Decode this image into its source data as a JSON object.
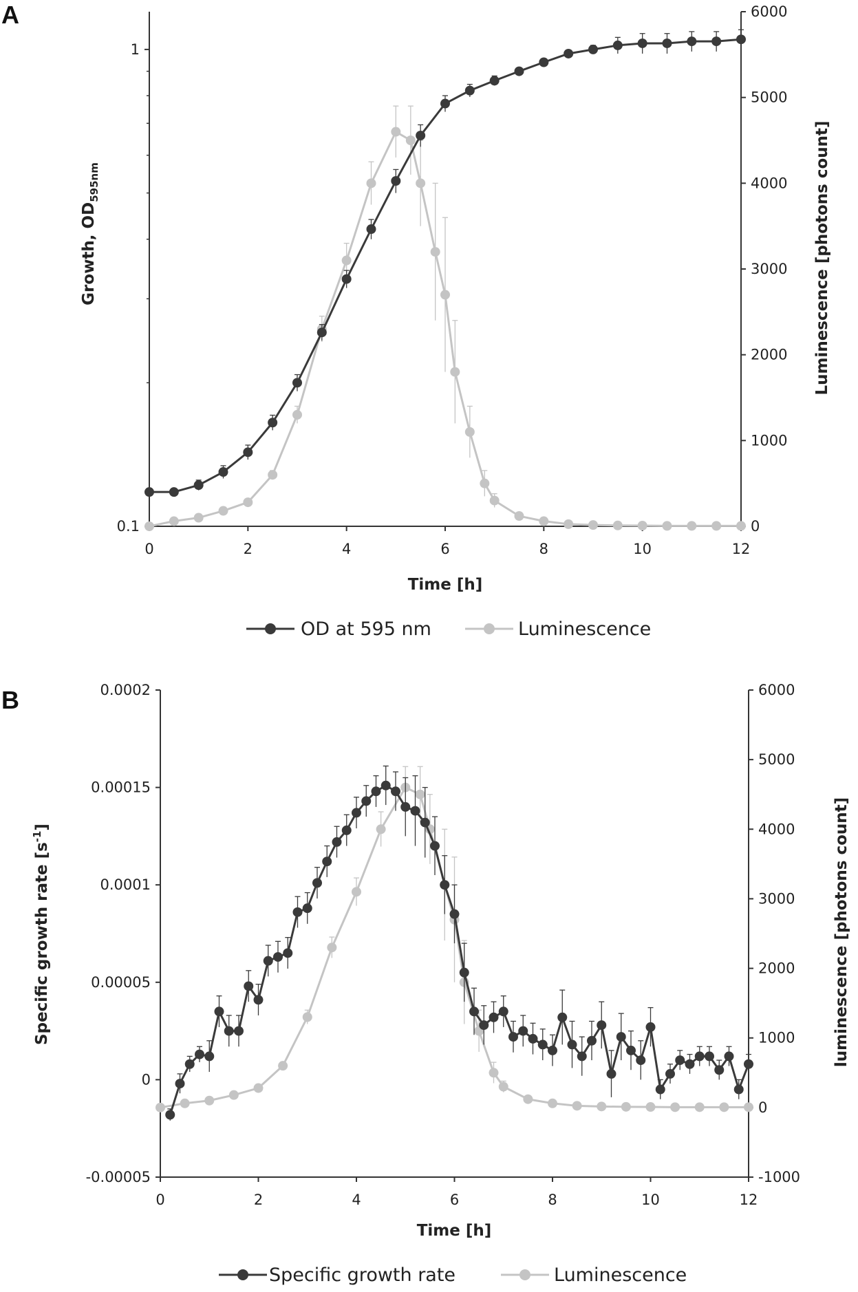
{
  "colors": {
    "od": "#3a3a3a",
    "growth_rate": "#3a3a3a",
    "luminescence": "#c4c4c4",
    "axis": "#333333"
  },
  "chart_data": [
    {
      "panel": "A",
      "type": "line",
      "xlabel": "Time  [h]",
      "xlim": [
        0,
        12
      ],
      "x_ticks": [
        "0",
        "2",
        "4",
        "6",
        "8",
        "10",
        "12"
      ],
      "ylabel": "Growth, OD",
      "ylabel_subscript": "595nm",
      "y_scale": "log",
      "ylim": [
        0.1,
        1.2
      ],
      "y_ticks": [
        "0.1",
        "1"
      ],
      "y2label": "Luminescence [photons count]",
      "y2lim": [
        0,
        6000
      ],
      "y2_ticks": [
        "0",
        "1000",
        "2000",
        "3000",
        "4000",
        "5000",
        "6000"
      ],
      "legend": {
        "position": "bottom",
        "entries": [
          "OD at 595 nm",
          "Luminescence"
        ]
      },
      "series": [
        {
          "name": "OD at 595 nm",
          "axis": "left",
          "x": [
            0,
            0.5,
            1,
            1.5,
            2,
            2.5,
            3,
            3.5,
            4,
            4.5,
            5,
            5.5,
            6,
            6.5,
            7,
            7.5,
            8,
            8.5,
            9,
            9.5,
            10,
            10.5,
            11,
            11.5,
            12
          ],
          "y": [
            0.118,
            0.118,
            0.122,
            0.13,
            0.143,
            0.165,
            0.2,
            0.255,
            0.33,
            0.42,
            0.53,
            0.66,
            0.77,
            0.82,
            0.86,
            0.9,
            0.94,
            0.98,
            1.0,
            1.02,
            1.03,
            1.03,
            1.04,
            1.04,
            1.05
          ],
          "err": [
            0.002,
            0.002,
            0.003,
            0.004,
            0.005,
            0.006,
            0.008,
            0.01,
            0.014,
            0.02,
            0.03,
            0.035,
            0.03,
            0.025,
            0.02,
            0.015,
            0.012,
            0.01,
            0.02,
            0.04,
            0.05,
            0.05,
            0.05,
            0.05,
            0.05
          ]
        },
        {
          "name": "Luminescence",
          "axis": "right",
          "x": [
            0,
            0.5,
            1,
            1.5,
            2,
            2.5,
            3,
            3.5,
            4,
            4.5,
            5,
            5.3,
            5.5,
            5.8,
            6,
            6.2,
            6.5,
            6.8,
            7,
            7.5,
            8,
            8.5,
            9,
            9.5,
            10,
            10.5,
            11,
            11.5,
            12
          ],
          "y": [
            0,
            60,
            100,
            180,
            280,
            600,
            1300,
            2300,
            3100,
            4000,
            4600,
            4500,
            4000,
            3200,
            2700,
            1800,
            1100,
            500,
            300,
            120,
            60,
            25,
            15,
            10,
            8,
            5,
            5,
            5,
            5
          ],
          "err": [
            5,
            10,
            15,
            20,
            30,
            50,
            100,
            150,
            200,
            250,
            300,
            400,
            500,
            800,
            900,
            600,
            300,
            150,
            80,
            40,
            20,
            10,
            5,
            5,
            5,
            5,
            5,
            5,
            5
          ]
        }
      ]
    },
    {
      "panel": "B",
      "type": "line",
      "xlabel": "Time [h]",
      "xlim": [
        0,
        12
      ],
      "x_ticks": [
        "0",
        "2",
        "4",
        "6",
        "8",
        "10",
        "12"
      ],
      "ylabel": "Specific growth rate [s",
      "ylabel_superscript": "-1",
      "ylabel_close": "]",
      "ylim": [
        -5e-05,
        0.0002
      ],
      "y_ticks": [
        "-0.00005",
        "0",
        "0.00005",
        "0.0001",
        "0.00015",
        "0.0002"
      ],
      "y2label": "luminescence [photons count]",
      "y2lim": [
        -1000,
        6000
      ],
      "y2_ticks": [
        "-1000",
        "0",
        "1000",
        "2000",
        "3000",
        "4000",
        "5000",
        "6000"
      ],
      "legend": {
        "position": "bottom",
        "entries": [
          "Specific growth rate",
          "Luminescence"
        ]
      },
      "series": [
        {
          "name": "Specific growth rate",
          "axis": "left",
          "x": [
            0.2,
            0.4,
            0.6,
            0.8,
            1.0,
            1.2,
            1.4,
            1.6,
            1.8,
            2.0,
            2.2,
            2.4,
            2.6,
            2.8,
            3.0,
            3.2,
            3.4,
            3.6,
            3.8,
            4.0,
            4.2,
            4.4,
            4.6,
            4.8,
            5.0,
            5.2,
            5.4,
            5.6,
            5.8,
            6.0,
            6.2,
            6.4,
            6.6,
            6.8,
            7.0,
            7.2,
            7.4,
            7.6,
            7.8,
            8.0,
            8.2,
            8.4,
            8.6,
            8.8,
            9.0,
            9.2,
            9.4,
            9.6,
            9.8,
            10.0,
            10.2,
            10.4,
            10.6,
            10.8,
            11.0,
            11.2,
            11.4,
            11.6,
            11.8,
            12.0
          ],
          "y": [
            -1.8e-05,
            -2e-06,
            8e-06,
            1.3e-05,
            1.2e-05,
            3.5e-05,
            2.5e-05,
            2.5e-05,
            4.8e-05,
            4.1e-05,
            6.1e-05,
            6.3e-05,
            6.5e-05,
            8.6e-05,
            8.8e-05,
            0.000101,
            0.000112,
            0.000122,
            0.000128,
            0.000137,
            0.000143,
            0.000148,
            0.000151,
            0.000148,
            0.00014,
            0.000138,
            0.000132,
            0.00012,
            0.0001,
            8.5e-05,
            5.5e-05,
            3.5e-05,
            2.8e-05,
            3.2e-05,
            3.5e-05,
            2.2e-05,
            2.5e-05,
            2.1e-05,
            1.8e-05,
            1.5e-05,
            3.2e-05,
            1.8e-05,
            1.2e-05,
            2e-05,
            2.8e-05,
            3e-06,
            2.2e-05,
            1.5e-05,
            1e-05,
            2.7e-05,
            -5e-06,
            3e-06,
            1e-05,
            8e-06,
            1.2e-05,
            1.2e-05,
            5e-06,
            1.2e-05,
            -5e-06,
            8e-06
          ],
          "err": [
            3e-06,
            5e-06,
            4e-06,
            4e-06,
            8e-06,
            8e-06,
            8e-06,
            8e-06,
            8e-06,
            8e-06,
            8e-06,
            8e-06,
            8e-06,
            8e-06,
            8e-06,
            8e-06,
            8e-06,
            8e-06,
            8e-06,
            8e-06,
            8e-06,
            8e-06,
            1e-05,
            1e-05,
            1.5e-05,
            1.8e-05,
            1.8e-05,
            1.5e-05,
            1.5e-05,
            1.5e-05,
            1.5e-05,
            1.2e-05,
            1e-05,
            8e-06,
            8e-06,
            8e-06,
            8e-06,
            8e-06,
            8e-06,
            8e-06,
            1.4e-05,
            1.2e-05,
            1e-05,
            1e-05,
            1.2e-05,
            1.2e-05,
            1.2e-05,
            1e-05,
            1e-05,
            1e-05,
            5e-06,
            5e-06,
            5e-06,
            5e-06,
            5e-06,
            5e-06,
            5e-06,
            5e-06,
            5e-06,
            5e-06
          ]
        },
        {
          "name": "Luminescence",
          "axis": "right",
          "x": [
            0,
            0.5,
            1,
            1.5,
            2,
            2.5,
            3,
            3.5,
            4,
            4.5,
            5,
            5.3,
            5.5,
            5.8,
            6,
            6.2,
            6.5,
            6.8,
            7,
            7.5,
            8,
            8.5,
            9,
            9.5,
            10,
            10.5,
            11,
            11.5,
            12
          ],
          "y": [
            0,
            60,
            100,
            180,
            280,
            600,
            1300,
            2300,
            3100,
            4000,
            4600,
            4500,
            4000,
            3200,
            2700,
            1800,
            1100,
            500,
            300,
            120,
            60,
            25,
            15,
            10,
            8,
            5,
            5,
            5,
            5
          ],
          "err": [
            5,
            10,
            15,
            20,
            30,
            50,
            100,
            150,
            200,
            250,
            300,
            400,
            500,
            800,
            900,
            600,
            300,
            150,
            80,
            40,
            20,
            10,
            5,
            5,
            5,
            5,
            5,
            5,
            5
          ]
        }
      ]
    }
  ]
}
